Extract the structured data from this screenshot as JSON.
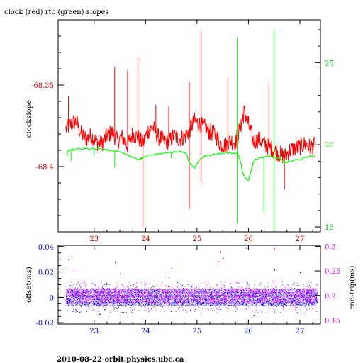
{
  "chart_data": [
    {
      "type": "line",
      "title": "clock (red) rtc (green) slopes",
      "ylabel": "clockslope",
      "x_ticks": [
        "23",
        "24",
        "25",
        "26",
        "27"
      ],
      "xlim": [
        22.3,
        27.4
      ],
      "ylim_left": [
        -68.44,
        -68.31
      ],
      "y_ticks_left": [
        -68.35,
        -68.4
      ],
      "y_tick_labels_left": [
        "-68.35",
        "-68.4"
      ],
      "ylim_right": [
        14.7,
        27.6
      ],
      "y_ticks_right": [
        15,
        20,
        25
      ],
      "y_tick_labels_right": [
        "15",
        "20",
        "25"
      ],
      "grid": false,
      "series": [
        {
          "name": "clock",
          "color": "#ff0000",
          "axis": "left",
          "points": [
            [
              22.45,
              -68.377
            ],
            [
              22.55,
              -68.374
            ],
            [
              22.65,
              -68.372
            ],
            [
              22.75,
              -68.38
            ],
            [
              22.85,
              -68.383
            ],
            [
              22.95,
              -68.381
            ],
            [
              23.05,
              -68.385
            ],
            [
              23.15,
              -68.386
            ],
            [
              23.25,
              -68.381
            ],
            [
              23.35,
              -68.379
            ],
            [
              23.45,
              -68.384
            ],
            [
              23.55,
              -68.382
            ],
            [
              23.65,
              -68.387
            ],
            [
              23.75,
              -68.38
            ],
            [
              23.85,
              -68.382
            ],
            [
              23.95,
              -68.386
            ],
            [
              24.05,
              -68.378
            ],
            [
              24.15,
              -68.376
            ],
            [
              24.25,
              -68.382
            ],
            [
              24.35,
              -68.384
            ],
            [
              24.45,
              -68.385
            ],
            [
              24.55,
              -68.381
            ],
            [
              24.65,
              -68.383
            ],
            [
              24.75,
              -68.382
            ],
            [
              24.85,
              -68.378
            ],
            [
              24.95,
              -68.372
            ],
            [
              25.05,
              -68.374
            ],
            [
              25.15,
              -68.376
            ],
            [
              25.25,
              -68.379
            ],
            [
              25.35,
              -68.38
            ],
            [
              25.45,
              -68.386
            ],
            [
              25.55,
              -68.387
            ],
            [
              25.65,
              -68.384
            ],
            [
              25.75,
              -68.385
            ],
            [
              25.85,
              -68.375
            ],
            [
              25.92,
              -68.366
            ],
            [
              26.0,
              -68.374
            ],
            [
              26.1,
              -68.385
            ],
            [
              26.2,
              -68.383
            ],
            [
              26.3,
              -68.386
            ],
            [
              26.4,
              -68.388
            ],
            [
              26.5,
              -68.39
            ],
            [
              26.6,
              -68.392
            ],
            [
              26.7,
              -68.394
            ],
            [
              26.8,
              -68.39
            ],
            [
              26.9,
              -68.389
            ],
            [
              27.0,
              -68.388
            ],
            [
              27.1,
              -68.386
            ],
            [
              27.2,
              -68.388
            ],
            [
              27.3,
              -68.387
            ]
          ],
          "spikes": [
            [
              22.5,
              -68.357
            ],
            [
              23.4,
              -68.339
            ],
            [
              23.65,
              -68.341
            ],
            [
              23.85,
              -68.333
            ],
            [
              23.95,
              -68.437
            ],
            [
              24.2,
              -68.362
            ],
            [
              24.45,
              -68.363
            ],
            [
              24.85,
              -68.348
            ],
            [
              24.85,
              -68.426
            ],
            [
              25.08,
              -68.317
            ],
            [
              25.08,
              -68.41
            ],
            [
              25.6,
              -68.345
            ],
            [
              26.4,
              -68.348
            ],
            [
              26.7,
              -68.414
            ]
          ]
        },
        {
          "name": "rtc",
          "color": "#00ff00",
          "axis": "right",
          "points": [
            [
              22.48,
              19.6
            ],
            [
              22.6,
              19.7
            ],
            [
              22.8,
              19.75
            ],
            [
              23.0,
              19.75
            ],
            [
              23.2,
              19.7
            ],
            [
              23.3,
              19.65
            ],
            [
              23.5,
              19.6
            ],
            [
              23.7,
              19.3
            ],
            [
              23.85,
              19.1
            ],
            [
              23.95,
              19.2
            ],
            [
              24.1,
              19.4
            ],
            [
              24.3,
              19.45
            ],
            [
              24.5,
              19.55
            ],
            [
              24.7,
              19.55
            ],
            [
              24.8,
              19.45
            ],
            [
              24.85,
              18.9
            ],
            [
              24.95,
              18.6
            ],
            [
              25.05,
              19.1
            ],
            [
              25.15,
              19.3
            ],
            [
              25.3,
              19.4
            ],
            [
              25.5,
              19.5
            ],
            [
              25.7,
              19.5
            ],
            [
              25.8,
              19.45
            ],
            [
              25.85,
              18.9
            ],
            [
              25.9,
              18.2
            ],
            [
              26.0,
              17.8
            ],
            [
              26.1,
              19.0
            ],
            [
              26.2,
              19.2
            ],
            [
              26.4,
              19.3
            ],
            [
              26.6,
              19.2
            ],
            [
              26.7,
              18.9
            ],
            [
              26.8,
              19.0
            ],
            [
              27.0,
              19.1
            ],
            [
              27.2,
              19.3
            ],
            [
              27.3,
              19.3
            ]
          ],
          "spikes": [
            [
              22.48,
              19.3
            ],
            [
              22.55,
              19.0
            ],
            [
              23.0,
              19.35
            ],
            [
              23.4,
              18.6
            ],
            [
              24.5,
              19.2
            ],
            [
              25.78,
              26.5
            ],
            [
              25.78,
              15.2
            ],
            [
              26.3,
              15.9
            ],
            [
              26.5,
              27.0
            ],
            [
              26.5,
              14.8
            ]
          ]
        }
      ]
    },
    {
      "type": "scatter",
      "ylabel": "offset(ms)",
      "ylabel_right": "rnd-trip(ms)",
      "x_ticks": [
        "23",
        "24",
        "25",
        "26",
        "27"
      ],
      "xlim": [
        22.3,
        27.4
      ],
      "ylim_left": [
        -0.021,
        0.041
      ],
      "y_ticks_left": [
        0.04,
        0.02,
        0,
        -0.02
      ],
      "y_tick_labels_left": [
        "0.04",
        "0.02",
        "0",
        "-0.02"
      ],
      "ylim_right": [
        0.142,
        0.302
      ],
      "y_ticks_right": [
        0.3,
        0.25,
        0.2,
        0.15
      ],
      "y_tick_labels_right": [
        "0.3",
        "0.25",
        "0.2",
        "0.15"
      ],
      "grid": false,
      "series": [
        {
          "name": "offset",
          "color": "#0000ff",
          "axis": "left",
          "band": [
            -0.006,
            0.006
          ],
          "outliers": [
            [
              22.5,
              0.03
            ],
            [
              23.4,
              0.028
            ],
            [
              24.5,
              0.023
            ],
            [
              25.45,
              0.036
            ],
            [
              25.5,
              0.031
            ],
            [
              26.5,
              0.022
            ],
            [
              27.0,
              0.02
            ],
            [
              23.1,
              -0.013
            ],
            [
              26.1,
              -0.014
            ]
          ]
        },
        {
          "name": "rnd-trip",
          "color": "#ff00ff",
          "axis": "right",
          "band": [
            0.185,
            0.215
          ],
          "outliers": [
            [
              22.6,
              0.25
            ],
            [
              23.5,
              0.245
            ],
            [
              24.45,
              0.238
            ],
            [
              25.45,
              0.29
            ],
            [
              25.95,
              0.297
            ],
            [
              26.5,
              0.296
            ],
            [
              25.4,
              0.27
            ],
            [
              27.1,
              0.165
            ]
          ]
        }
      ]
    }
  ],
  "footer": {
    "text": "2010-08-22  orbit.physics.ubc.ca"
  }
}
